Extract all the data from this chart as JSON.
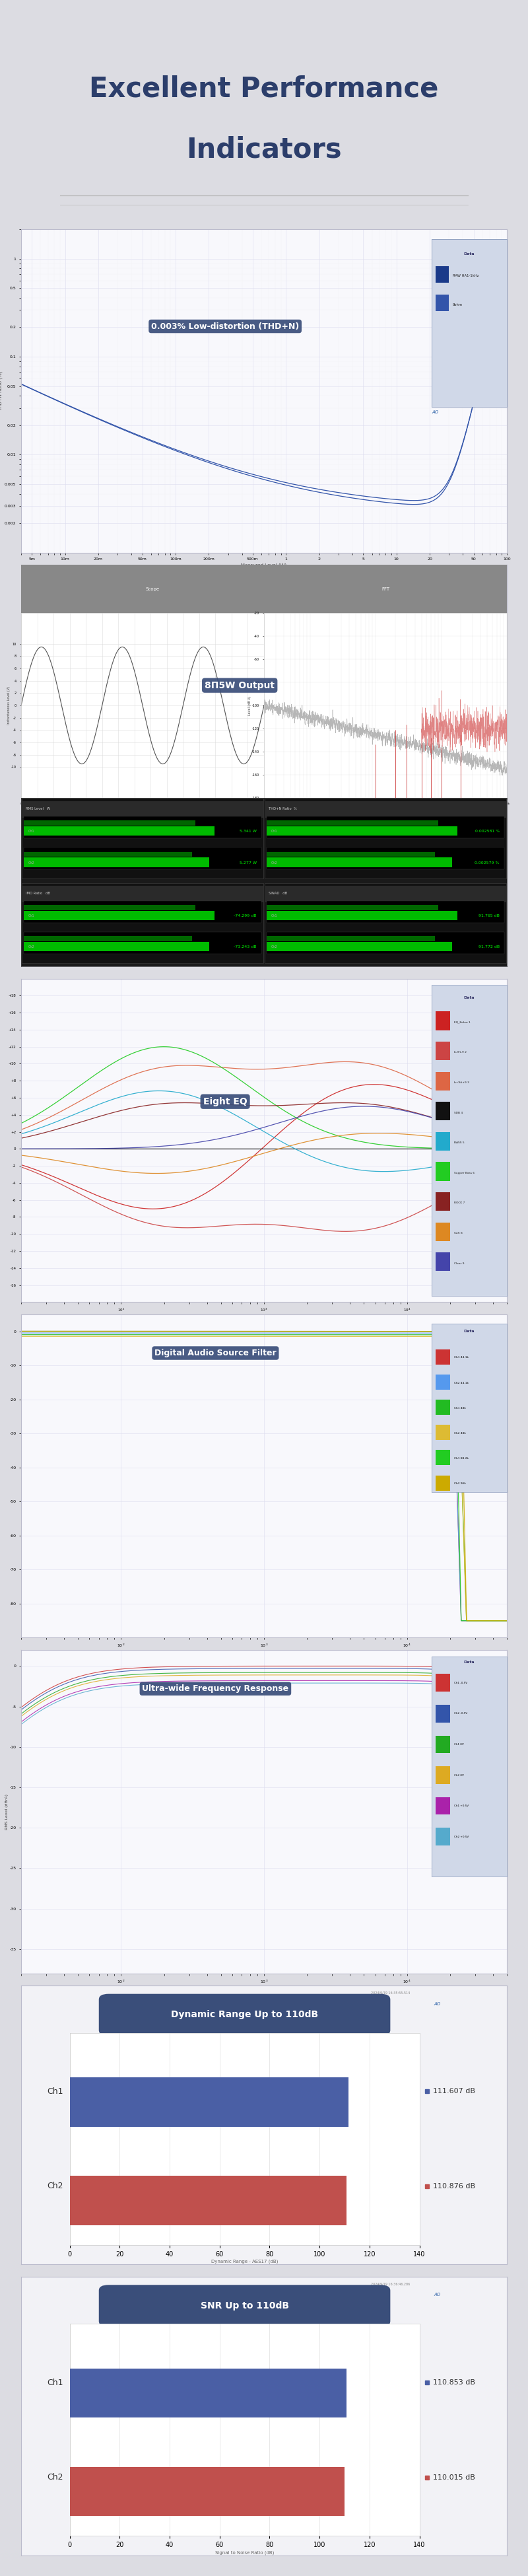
{
  "title_line1": "Excellent Performance",
  "title_line2": "Indicators",
  "title_color": "#2c3e6b",
  "bg_color": "#dcdce2",
  "panel1_title": "0.003% Low-distortion (THD+N)",
  "panel2_title": "8Π5W Output",
  "panel3_title": "Eight EQ",
  "panel4_title": "Digital Audio Source Filter",
  "panel5_title": "Ultra-wide Frequency Response",
  "panel6_title": "Dynamic Range Up to 110dB",
  "panel7_title": "SNR Up to 110dB",
  "panel_label_color": "#ffffff",
  "panel_label_bg": "#3a4e7a",
  "dr_ch1_value": 111.607,
  "dr_ch2_value": 110.876,
  "snr_ch1_value": 110.853,
  "snr_ch2_value": 110.015,
  "blue_color": "#4a5fa5",
  "red_color": "#c0504d",
  "legend_bg": "#d0d8e8",
  "legend_border": "#8899bb",
  "panel_outer_bg": "#e8e8ee",
  "panel_inner_bg": "#f8f8fc",
  "panel_border": "#bbbbcc"
}
